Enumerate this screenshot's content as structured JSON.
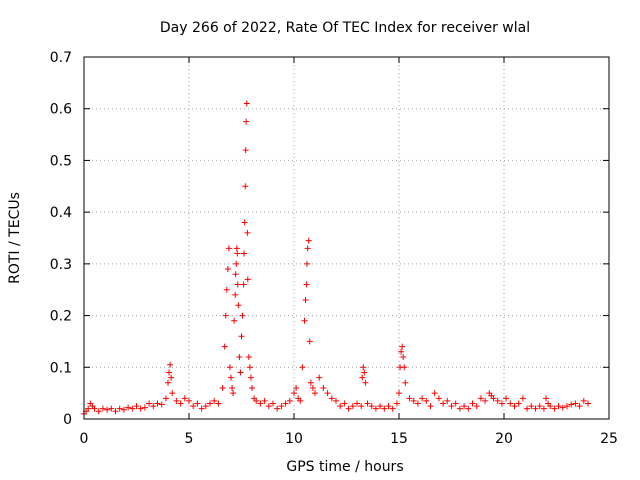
{
  "chart_data": {
    "type": "scatter",
    "title": "Day 266 of 2022, Rate Of TEC Index for receiver wlal",
    "xlabel": "GPS time / hours",
    "ylabel": "ROTI / TECUs",
    "xlim": [
      0,
      25
    ],
    "ylim": [
      0,
      0.7
    ],
    "xticks": [
      "0",
      "5",
      "10",
      "15",
      "20",
      "25"
    ],
    "yticks": [
      "0",
      "0.1",
      "0.2",
      "0.3",
      "0.4",
      "0.5",
      "0.6",
      "0.7"
    ],
    "grid": true,
    "marker": "plus",
    "color": "#ff0000",
    "series": [
      {
        "x": [
          0.0,
          0.1,
          0.2,
          0.3,
          0.4,
          0.5,
          0.7,
          0.9,
          1.1,
          1.3,
          1.5,
          1.7,
          1.9,
          2.1,
          2.3,
          2.5,
          2.7,
          2.9,
          3.1,
          3.3,
          3.5,
          3.7,
          3.9,
          4.0,
          4.05,
          4.1,
          4.15,
          4.2,
          4.4,
          4.6,
          4.8,
          5.0,
          5.2,
          5.4,
          5.6,
          5.8,
          6.0,
          6.2,
          6.4,
          6.6,
          6.7,
          6.75,
          6.8,
          6.85,
          6.9,
          6.95,
          7.0,
          7.05,
          7.1,
          7.15,
          7.2,
          7.22,
          7.25,
          7.28,
          7.3,
          7.32,
          7.35,
          7.4,
          7.45,
          7.5,
          7.55,
          7.6,
          7.62,
          7.65,
          7.68,
          7.7,
          7.72,
          7.75,
          7.78,
          7.8,
          7.85,
          7.9,
          7.95,
          8.0,
          8.1,
          8.2,
          8.4,
          8.6,
          8.8,
          9.0,
          9.2,
          9.4,
          9.6,
          9.8,
          10.0,
          10.1,
          10.2,
          10.3,
          10.4,
          10.5,
          10.55,
          10.6,
          10.62,
          10.65,
          10.7,
          10.75,
          10.8,
          10.9,
          11.0,
          11.2,
          11.4,
          11.6,
          11.8,
          12.0,
          12.2,
          12.4,
          12.6,
          12.8,
          13.0,
          13.2,
          13.25,
          13.3,
          13.35,
          13.4,
          13.5,
          13.7,
          13.9,
          14.1,
          14.3,
          14.5,
          14.7,
          14.9,
          15.0,
          15.05,
          15.1,
          15.15,
          15.2,
          15.25,
          15.3,
          15.5,
          15.7,
          15.9,
          16.1,
          16.3,
          16.5,
          16.7,
          16.9,
          17.1,
          17.3,
          17.5,
          17.7,
          17.9,
          18.1,
          18.3,
          18.5,
          18.7,
          18.9,
          19.1,
          19.3,
          19.4,
          19.5,
          19.7,
          19.9,
          20.1,
          20.3,
          20.5,
          20.7,
          20.9,
          21.1,
          21.3,
          21.5,
          21.7,
          21.9,
          22.0,
          22.1,
          22.2,
          22.4,
          22.6,
          22.8,
          23.0,
          23.2,
          23.4,
          23.6,
          23.8,
          24.0
        ],
        "y": [
          0.01,
          0.015,
          0.02,
          0.03,
          0.025,
          0.02,
          0.015,
          0.02,
          0.018,
          0.02,
          0.015,
          0.02,
          0.018,
          0.022,
          0.02,
          0.025,
          0.02,
          0.022,
          0.03,
          0.025,
          0.03,
          0.028,
          0.04,
          0.07,
          0.09,
          0.105,
          0.08,
          0.05,
          0.035,
          0.03,
          0.04,
          0.035,
          0.025,
          0.03,
          0.02,
          0.025,
          0.03,
          0.035,
          0.03,
          0.06,
          0.14,
          0.2,
          0.25,
          0.29,
          0.33,
          0.1,
          0.08,
          0.06,
          0.05,
          0.19,
          0.24,
          0.28,
          0.3,
          0.33,
          0.32,
          0.26,
          0.22,
          0.12,
          0.09,
          0.16,
          0.2,
          0.26,
          0.32,
          0.38,
          0.45,
          0.52,
          0.575,
          0.61,
          0.36,
          0.27,
          0.12,
          0.1,
          0.08,
          0.06,
          0.04,
          0.035,
          0.03,
          0.035,
          0.025,
          0.03,
          0.02,
          0.025,
          0.03,
          0.035,
          0.05,
          0.06,
          0.04,
          0.035,
          0.1,
          0.19,
          0.23,
          0.26,
          0.3,
          0.33,
          0.345,
          0.15,
          0.07,
          0.06,
          0.05,
          0.08,
          0.06,
          0.05,
          0.04,
          0.035,
          0.025,
          0.03,
          0.02,
          0.025,
          0.03,
          0.025,
          0.08,
          0.1,
          0.09,
          0.07,
          0.03,
          0.025,
          0.02,
          0.025,
          0.02,
          0.025,
          0.02,
          0.03,
          0.05,
          0.1,
          0.13,
          0.14,
          0.12,
          0.1,
          0.07,
          0.04,
          0.035,
          0.03,
          0.04,
          0.035,
          0.025,
          0.05,
          0.04,
          0.03,
          0.035,
          0.025,
          0.03,
          0.02,
          0.025,
          0.02,
          0.03,
          0.025,
          0.04,
          0.035,
          0.05,
          0.045,
          0.04,
          0.035,
          0.03,
          0.04,
          0.03,
          0.025,
          0.03,
          0.04,
          0.02,
          0.025,
          0.02,
          0.025,
          0.02,
          0.04,
          0.03,
          0.025,
          0.02,
          0.025,
          0.022,
          0.025,
          0.028,
          0.03,
          0.025,
          0.035,
          0.03
        ]
      }
    ]
  }
}
